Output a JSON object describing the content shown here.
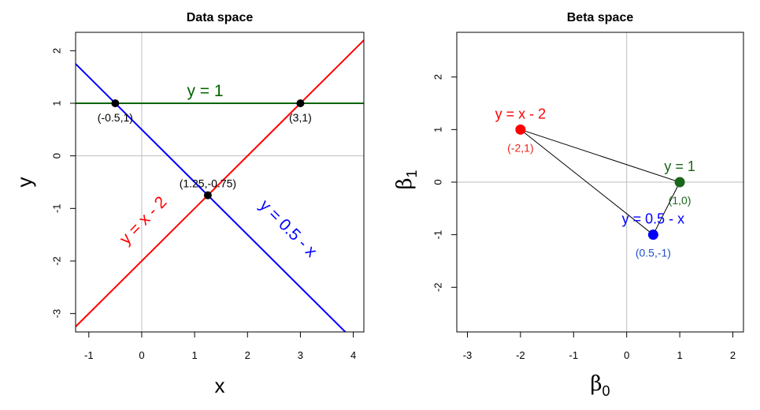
{
  "chart_data": [
    {
      "type": "line",
      "title": "Data space",
      "xlabel": "x",
      "ylabel": "y",
      "xlim": [
        -1.25,
        4.2
      ],
      "ylim": [
        -3.35,
        2.35
      ],
      "xticks": [
        -1,
        0,
        1,
        2,
        3,
        4
      ],
      "yticks": [
        -3,
        -2,
        -1,
        0,
        1,
        2
      ],
      "grid_lines": {
        "x": [
          0
        ],
        "y": [
          0
        ]
      },
      "lines": [
        {
          "name": "y = 1",
          "label": "y = 1",
          "intercept": 1,
          "slope": 0,
          "color": "#006400"
        },
        {
          "name": "y = x - 2",
          "label": "y = x - 2",
          "intercept": -2,
          "slope": 1,
          "color": "#ff0000"
        },
        {
          "name": "y = 0.5 - x",
          "label": "y = 0.5 - x",
          "intercept": 0.5,
          "slope": -1,
          "color": "#0000ff"
        }
      ],
      "points": [
        {
          "x": -0.5,
          "y": 1,
          "label": "(-0.5,1)"
        },
        {
          "x": 3,
          "y": 1,
          "label": "(3,1)"
        },
        {
          "x": 1.25,
          "y": -0.75,
          "label": "(1.25,-0.75)"
        }
      ]
    },
    {
      "type": "scatter",
      "title": "Beta space",
      "xlabel": "β0",
      "ylabel": "β1",
      "xlim": [
        -3.2,
        2.2
      ],
      "ylim": [
        -2.85,
        2.85
      ],
      "xticks": [
        -3,
        -2,
        -1,
        0,
        1,
        2
      ],
      "yticks": [
        -2,
        -1,
        0,
        1,
        2
      ],
      "grid_lines": {
        "x": [
          0
        ],
        "y": [
          0
        ]
      },
      "points": [
        {
          "x": -2,
          "y": 1,
          "name": "y = x - 2",
          "label": "(-2,1)",
          "color": "#ff0000"
        },
        {
          "x": 1,
          "y": 0,
          "name": "y = 1",
          "label": "(1,0)",
          "color": "#006400"
        },
        {
          "x": 0.5,
          "y": -1,
          "name": "y = 0.5 - x",
          "label": "(0.5,-1)",
          "color": "#0000ff"
        }
      ],
      "triangle": true
    }
  ],
  "colors": {
    "grid": "#bebebe",
    "red": "#ff0000",
    "green": "#006400",
    "blue": "#0000ff",
    "beta_green": "#1a661a",
    "beta_red_label": "#e8251c",
    "beta_blue_label": "#1f4fc9"
  }
}
